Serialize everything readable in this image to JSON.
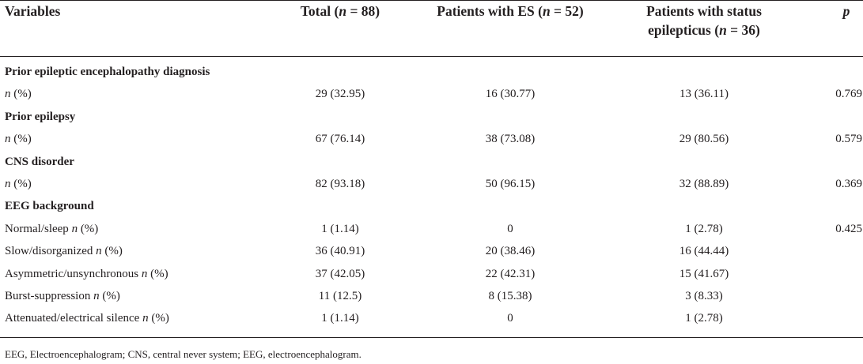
{
  "header": {
    "variables": "Variables",
    "total_pre": "Total (",
    "total_n": "n",
    "total_post": " = 88)",
    "es_pre": "Patients with ES (",
    "es_n": "n",
    "es_post": " = 52)",
    "se_line1": "Patients with status",
    "se_pre": "epilepticus (",
    "se_n": "n",
    "se_post": " = 36)",
    "p": "p"
  },
  "rows": [
    {
      "type": "section",
      "label": "Prior epileptic encephalopathy diagnosis"
    },
    {
      "type": "data",
      "label_pre": "",
      "label_n": "n",
      "label_post": " (%)",
      "total": "29 (32.95)",
      "es": "16 (30.77)",
      "se": "13 (36.11)",
      "p": "0.769"
    },
    {
      "type": "section",
      "label": "Prior epilepsy"
    },
    {
      "type": "data",
      "label_pre": "",
      "label_n": "n",
      "label_post": " (%)",
      "total": "67 (76.14)",
      "es": "38 (73.08)",
      "se": "29 (80.56)",
      "p": "0.579"
    },
    {
      "type": "section",
      "label": "CNS disorder"
    },
    {
      "type": "data",
      "label_pre": "",
      "label_n": "n",
      "label_post": " (%)",
      "total": "82 (93.18)",
      "es": "50 (96.15)",
      "se": "32 (88.89)",
      "p": "0.369"
    },
    {
      "type": "section",
      "label": "EEG background"
    },
    {
      "type": "data",
      "label_pre": "Normal/sleep ",
      "label_n": "n",
      "label_post": " (%)",
      "total": "1 (1.14)",
      "es": "0",
      "se": "1 (2.78)",
      "p": "0.425"
    },
    {
      "type": "data",
      "label_pre": "Slow/disorganized ",
      "label_n": "n",
      "label_post": " (%)",
      "total": "36 (40.91)",
      "es": "20 (38.46)",
      "se": "16 (44.44)",
      "p": ""
    },
    {
      "type": "data",
      "label_pre": "Asymmetric/unsynchronous ",
      "label_n": "n",
      "label_post": " (%)",
      "total": "37 (42.05)",
      "es": "22 (42.31)",
      "se": "15 (41.67)",
      "p": ""
    },
    {
      "type": "data",
      "label_pre": "Burst-suppression ",
      "label_n": "n",
      "label_post": " (%)",
      "total": "11 (12.5)",
      "es": "8 (15.38)",
      "se": "3 (8.33)",
      "p": ""
    },
    {
      "type": "data",
      "label_pre": "Attenuated/electrical silence ",
      "label_n": "n",
      "label_post": " (%)",
      "total": "1 (1.14)",
      "es": "0",
      "se": "1 (2.78)",
      "p": ""
    }
  ],
  "footnote": "EEG, Electroencephalogram; CNS, central never system; EEG, electroencephalogram."
}
